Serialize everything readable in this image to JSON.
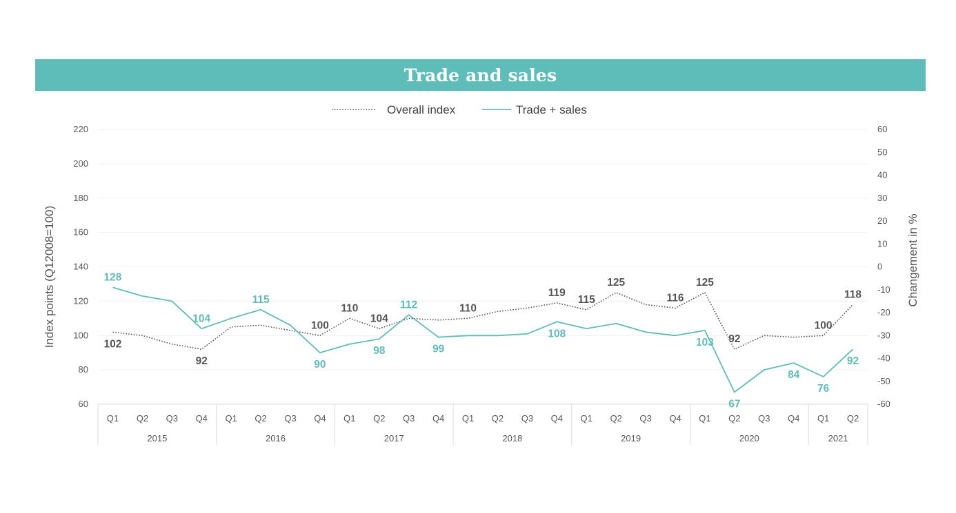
{
  "chart_data": {
    "type": "line",
    "title": "Trade and sales",
    "y_left_label": "Index points (Q12008=100)",
    "y_right_label": "Changement in %",
    "y_left_range": [
      60,
      220
    ],
    "y_left_ticks": [
      "220",
      "200",
      "180",
      "160",
      "140",
      "120",
      "100",
      "80",
      "60"
    ],
    "y_right_range": [
      -60,
      60
    ],
    "y_right_ticks": [
      "60",
      "50",
      "40",
      "30",
      "20",
      "10",
      "0",
      "-10",
      "-20",
      "-30",
      "-40",
      "-50",
      "-60"
    ],
    "quarters": [
      "Q1",
      "Q2",
      "Q3",
      "Q4",
      "Q1",
      "Q2",
      "Q3",
      "Q4",
      "Q1",
      "Q2",
      "Q3",
      "Q4",
      "Q1",
      "Q2",
      "Q3",
      "Q4",
      "Q1",
      "Q2",
      "Q3",
      "Q4",
      "Q1",
      "Q2",
      "Q3",
      "Q4",
      "Q1",
      "Q2"
    ],
    "years": [
      {
        "label": "2015",
        "start": 0,
        "count": 4
      },
      {
        "label": "2016",
        "start": 4,
        "count": 4
      },
      {
        "label": "2017",
        "start": 8,
        "count": 4
      },
      {
        "label": "2018",
        "start": 12,
        "count": 4
      },
      {
        "label": "2019",
        "start": 16,
        "count": 4
      },
      {
        "label": "2020",
        "start": 20,
        "count": 4
      },
      {
        "label": "2021",
        "start": 24,
        "count": 2
      }
    ],
    "legend_position": "top",
    "grid": true,
    "series": [
      {
        "name": "Overall index",
        "style": "dotted",
        "color": "#555555",
        "values": [
          102,
          100,
          95,
          92,
          105,
          106,
          103,
          100,
          110,
          104,
          110,
          109,
          110,
          114,
          116,
          119,
          115,
          125,
          118,
          116,
          125,
          92,
          100,
          99,
          100,
          118
        ],
        "labels": [
          "102",
          null,
          null,
          "92",
          null,
          null,
          null,
          "100",
          "110",
          "104",
          null,
          null,
          "110",
          null,
          null,
          "119",
          "115",
          "125",
          null,
          "116",
          "125",
          "92",
          null,
          null,
          "100",
          "118"
        ]
      },
      {
        "name": "Trade + sales",
        "style": "solid",
        "color": "#5ebdb8",
        "values": [
          128,
          123,
          120,
          104,
          110,
          115,
          106,
          90,
          95,
          98,
          112,
          99,
          100,
          100,
          101,
          108,
          104,
          107,
          102,
          100,
          103,
          67,
          80,
          84,
          76,
          92
        ],
        "labels": [
          "128",
          null,
          null,
          "104",
          null,
          "115",
          null,
          "90",
          null,
          "98",
          "112",
          "99",
          null,
          null,
          null,
          "108",
          null,
          null,
          null,
          null,
          "103",
          "67",
          null,
          "84",
          "76",
          "92"
        ]
      }
    ]
  }
}
